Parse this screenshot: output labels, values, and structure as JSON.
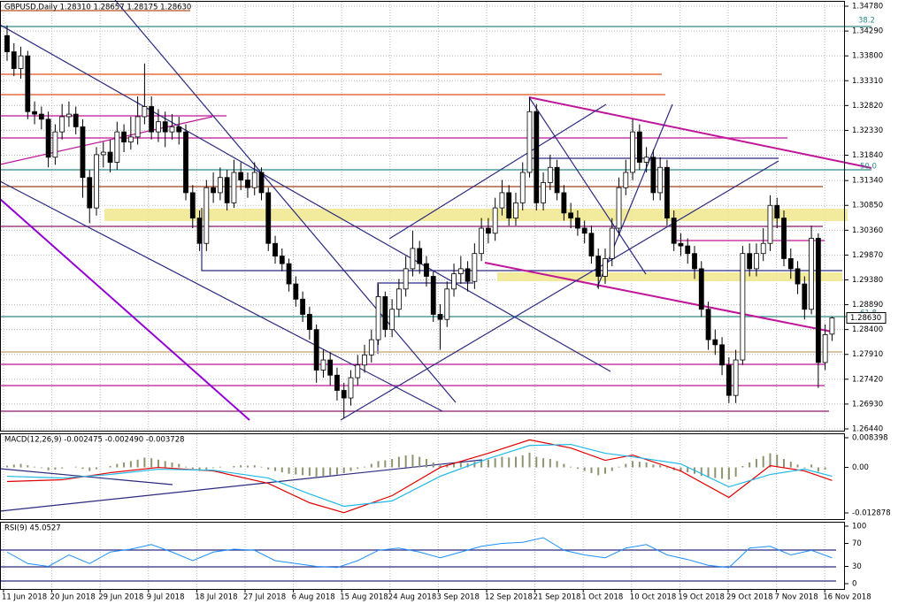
{
  "chart_data": [
    {
      "type": "candlestick",
      "title": "GBPUSD,Daily  1.28310 1.28657 1.28175 1.28630",
      "ylim": [
        1.2644,
        1.3478
      ],
      "yticks": [
        {
          "value": 1.3478,
          "label": "1.34780"
        },
        {
          "value": 1.3429,
          "label": "1.34290"
        },
        {
          "value": 1.338,
          "label": "1.33800"
        },
        {
          "value": 1.3331,
          "label": "1.33310"
        },
        {
          "value": 1.3282,
          "label": "1.32820"
        },
        {
          "value": 1.3233,
          "label": "1.32330"
        },
        {
          "value": 1.3184,
          "label": "1.31840"
        },
        {
          "value": 1.3134,
          "label": "1.31340"
        },
        {
          "value": 1.3085,
          "label": "1.30850"
        },
        {
          "value": 1.3036,
          "label": "1.30360"
        },
        {
          "value": 1.2987,
          "label": "1.29870"
        },
        {
          "value": 1.2938,
          "label": "1.29380"
        },
        {
          "value": 1.2889,
          "label": "1.28890"
        },
        {
          "value": 1.284,
          "label": "1.28400"
        },
        {
          "value": 1.2791,
          "label": "1.27910"
        },
        {
          "value": 1.2742,
          "label": "1.27420"
        },
        {
          "value": 1.2693,
          "label": "1.26930"
        },
        {
          "value": 1.2644,
          "label": "1.26440"
        }
      ],
      "grid": true,
      "up_color": "#ffffff",
      "down_color": "#000000",
      "annotations": [
        "38.2",
        "50.0",
        "61.8"
      ],
      "last_price": {
        "value": 1.2863,
        "label": "1.28630"
      },
      "open": [
        1.342,
        1.3388,
        1.3355,
        1.338,
        1.327,
        1.3265,
        1.3255,
        1.318,
        1.323,
        1.326,
        1.3265,
        1.324,
        1.314,
        1.308,
        1.3185,
        1.319,
        1.317,
        1.323,
        1.321,
        1.322,
        1.326,
        1.328,
        1.323,
        1.325,
        1.323,
        1.324,
        1.323,
        1.311,
        1.306,
        1.301,
        1.312,
        1.311,
        1.314,
        1.309,
        1.315,
        1.3135,
        1.312,
        1.315,
        1.311,
        1.301,
        1.2985,
        1.297,
        1.293,
        1.29,
        1.287,
        1.284,
        1.276,
        1.278,
        1.275,
        1.272,
        1.2705,
        1.2745,
        1.277,
        1.279,
        1.282,
        1.2905,
        1.284,
        1.288,
        1.292,
        1.296,
        1.3,
        1.297,
        1.2945,
        1.287,
        1.286,
        1.292,
        1.295,
        1.296,
        1.2935,
        1.299,
        1.304,
        1.303,
        1.308,
        1.311,
        1.306,
        1.309,
        1.315,
        1.327,
        1.309,
        1.313,
        1.316,
        1.311,
        1.307,
        1.306,
        1.304,
        1.303,
        1.2985,
        1.2945,
        1.298,
        1.304,
        1.312,
        1.315,
        1.323,
        1.317,
        1.318,
        1.311,
        1.316,
        1.306,
        1.301,
        1.3005,
        1.299,
        1.296,
        1.288,
        1.282,
        1.281,
        1.277,
        1.271,
        1.278,
        1.299,
        1.296,
        1.299,
        1.301,
        1.3085,
        1.306,
        1.298,
        1.296,
        1.293,
        1.288,
        1.302,
        1.2775,
        1.2831
      ],
      "high": [
        1.344,
        1.3405,
        1.3398,
        1.339,
        1.329,
        1.328,
        1.327,
        1.3245,
        1.3285,
        1.329,
        1.328,
        1.3255,
        1.3155,
        1.32,
        1.321,
        1.3215,
        1.325,
        1.3245,
        1.326,
        1.33,
        1.3365,
        1.33,
        1.3275,
        1.327,
        1.3265,
        1.326,
        1.3245,
        1.3125,
        1.3075,
        1.3135,
        1.315,
        1.316,
        1.3155,
        1.3175,
        1.317,
        1.315,
        1.317,
        1.316,
        1.312,
        1.3025,
        1.3,
        1.298,
        1.2945,
        1.2915,
        1.2885,
        1.285,
        1.28,
        1.2795,
        1.2765,
        1.2735,
        1.276,
        1.279,
        1.281,
        1.284,
        1.293,
        1.2915,
        1.29,
        1.294,
        1.2985,
        1.3035,
        1.3015,
        1.2985,
        1.2955,
        1.289,
        1.2935,
        1.297,
        1.2985,
        1.2975,
        1.301,
        1.306,
        1.306,
        1.31,
        1.3135,
        1.3125,
        1.311,
        1.317,
        1.3298,
        1.3285,
        1.315,
        1.3185,
        1.3175,
        1.3125,
        1.309,
        1.3075,
        1.3055,
        1.3045,
        1.3,
        1.3,
        1.306,
        1.314,
        1.3175,
        1.3255,
        1.3245,
        1.32,
        1.3195,
        1.318,
        1.3175,
        1.3075,
        1.303,
        1.302,
        1.3005,
        1.2975,
        1.2895,
        1.284,
        1.2825,
        1.2785,
        1.28,
        1.3005,
        1.301,
        1.301,
        1.304,
        1.3105,
        1.31,
        1.3075,
        1.3,
        1.2975,
        1.2945,
        1.3045,
        1.303,
        1.285,
        1.28657
      ],
      "low": [
        1.337,
        1.334,
        1.3335,
        1.3255,
        1.3245,
        1.3235,
        1.316,
        1.3165,
        1.3215,
        1.324,
        1.3225,
        1.31,
        1.305,
        1.3065,
        1.316,
        1.315,
        1.3155,
        1.319,
        1.3195,
        1.3205,
        1.3245,
        1.3215,
        1.321,
        1.32,
        1.3215,
        1.3205,
        1.3095,
        1.304,
        1.2995,
        1.2995,
        1.309,
        1.3095,
        1.3075,
        1.308,
        1.3115,
        1.31,
        1.3105,
        1.3095,
        1.2995,
        1.297,
        1.2955,
        1.2915,
        1.2885,
        1.2855,
        1.282,
        1.2735,
        1.2745,
        1.273,
        1.27,
        1.2665,
        1.269,
        1.273,
        1.2755,
        1.2775,
        1.281,
        1.2825,
        1.2825,
        1.2865,
        1.2905,
        1.2945,
        1.295,
        1.2925,
        1.2855,
        1.28,
        1.2845,
        1.2905,
        1.293,
        1.2915,
        1.292,
        1.2975,
        1.301,
        1.3015,
        1.3065,
        1.3045,
        1.3045,
        1.3075,
        1.314,
        1.3075,
        1.3075,
        1.3115,
        1.3095,
        1.3055,
        1.304,
        1.3025,
        1.301,
        1.297,
        1.292,
        1.293,
        1.2965,
        1.3025,
        1.3105,
        1.3135,
        1.3155,
        1.315,
        1.3095,
        1.3095,
        1.3045,
        1.2995,
        1.2985,
        1.297,
        1.294,
        1.2865,
        1.28,
        1.279,
        1.275,
        1.2695,
        1.2695,
        1.277,
        1.2945,
        1.2945,
        1.2975,
        1.2995,
        1.304,
        1.2965,
        1.294,
        1.291,
        1.286,
        1.287,
        1.2725,
        1.276,
        1.28175
      ],
      "close": [
        1.3388,
        1.3355,
        1.338,
        1.327,
        1.3265,
        1.3255,
        1.318,
        1.323,
        1.326,
        1.3265,
        1.324,
        1.314,
        1.308,
        1.3185,
        1.319,
        1.317,
        1.323,
        1.321,
        1.322,
        1.326,
        1.328,
        1.323,
        1.325,
        1.323,
        1.324,
        1.323,
        1.311,
        1.306,
        1.301,
        1.312,
        1.311,
        1.314,
        1.309,
        1.315,
        1.3135,
        1.312,
        1.315,
        1.311,
        1.301,
        1.2985,
        1.297,
        1.293,
        1.29,
        1.287,
        1.284,
        1.276,
        1.278,
        1.275,
        1.272,
        1.2705,
        1.2745,
        1.277,
        1.279,
        1.282,
        1.2905,
        1.284,
        1.288,
        1.292,
        1.296,
        1.3,
        1.297,
        1.2945,
        1.287,
        1.286,
        1.292,
        1.295,
        1.296,
        1.2935,
        1.299,
        1.304,
        1.303,
        1.308,
        1.311,
        1.306,
        1.309,
        1.315,
        1.327,
        1.309,
        1.313,
        1.316,
        1.311,
        1.307,
        1.306,
        1.304,
        1.303,
        1.2985,
        1.2945,
        1.298,
        1.304,
        1.312,
        1.315,
        1.323,
        1.317,
        1.318,
        1.311,
        1.316,
        1.306,
        1.301,
        1.3005,
        1.299,
        1.296,
        1.288,
        1.282,
        1.281,
        1.277,
        1.271,
        1.278,
        1.299,
        1.296,
        1.299,
        1.301,
        1.3085,
        1.306,
        1.298,
        1.296,
        1.293,
        1.288,
        1.302,
        1.2775,
        1.283,
        1.2863
      ]
    },
    {
      "type": "macd",
      "title": "MACD(12,26,9) -0.002475 -0.002490 -0.003728",
      "ylim": [
        -0.012878,
        0.008398
      ],
      "yticks": [
        0.008398,
        {
          "value": 0,
          "label": "0.00"
        },
        -0.012878
      ],
      "histogram_color": "#8c9470",
      "histogram": [
        0.0005,
        0.0008,
        0.001,
        0.0006,
        0.0002,
        -0.0002,
        -0.0008,
        -0.0006,
        -0.0003,
        0.0,
        0.0002,
        -0.0004,
        -0.001,
        -0.0005,
        0.0,
        0.0004,
        0.001,
        0.0014,
        0.0018,
        0.0022,
        0.0028,
        0.0026,
        0.0022,
        0.0018,
        0.0014,
        0.001,
        0.0002,
        -0.0004,
        -0.001,
        -0.0006,
        -0.0002,
        0.0002,
        0.0,
        0.0004,
        0.0006,
        0.0005,
        0.0006,
        0.0002,
        -0.0006,
        -0.001,
        -0.0014,
        -0.0018,
        -0.002,
        -0.0022,
        -0.0024,
        -0.0028,
        -0.0024,
        -0.0022,
        -0.002,
        -0.0016,
        -0.001,
        -0.0004,
        0.0002,
        0.001,
        0.0018,
        0.002,
        0.0024,
        0.003,
        0.0034,
        0.0036,
        0.003,
        0.0024,
        0.0014,
        0.0006,
        0.0008,
        0.0012,
        0.0014,
        0.0012,
        0.0016,
        0.002,
        0.0022,
        0.0026,
        0.003,
        0.0028,
        0.003,
        0.0034,
        0.0042,
        0.003,
        0.0026,
        0.0024,
        0.0018,
        0.001,
        0.0002,
        -0.0004,
        -0.001,
        -0.0016,
        -0.0022,
        -0.0018,
        -0.001,
        0.0002,
        0.001,
        0.0018,
        0.0016,
        0.0014,
        0.0008,
        0.0006,
        -0.0002,
        -0.0008,
        -0.0012,
        -0.0014,
        -0.0018,
        -0.0024,
        -0.0028,
        -0.003,
        -0.0032,
        -0.0034,
        -0.0026,
        0.0004,
        0.0014,
        0.0024,
        0.0032,
        0.004,
        0.0036,
        0.0024,
        0.0016,
        0.0008,
        -0.0002,
        0.0008,
        -0.0012,
        -0.0006,
        0.0
      ],
      "lines": [
        {
          "color": "#e00000",
          "x": [
            0,
            8,
            15,
            22,
            30,
            38,
            44,
            49,
            56,
            63,
            70,
            76,
            82,
            87,
            91,
            98,
            105,
            111,
            116,
            120
          ],
          "values": [
            -0.004,
            -0.0035,
            -0.0015,
            0.0,
            -0.001,
            -0.0045,
            -0.01,
            -0.0128,
            -0.008,
            0.0,
            0.004,
            0.0078,
            0.0055,
            0.002,
            0.0035,
            -0.001,
            -0.0085,
            0.0005,
            -0.001,
            -0.0037
          ]
        },
        {
          "color": "#22b8e8",
          "x": [
            0,
            8,
            15,
            22,
            30,
            38,
            44,
            49,
            56,
            63,
            70,
            76,
            82,
            87,
            91,
            98,
            105,
            111,
            116,
            120
          ],
          "values": [
            -0.0025,
            -0.003,
            -0.002,
            -0.0005,
            -0.0008,
            -0.003,
            -0.0075,
            -0.011,
            -0.0095,
            -0.0025,
            0.0025,
            0.0062,
            0.0065,
            0.004,
            0.003,
            0.001,
            -0.0055,
            -0.002,
            -0.0005,
            -0.0025
          ]
        }
      ]
    },
    {
      "type": "line",
      "title": "RSI(9) 45.0527",
      "ylim": [
        0,
        100
      ],
      "yticks": [
        100,
        70,
        30,
        0
      ],
      "color": "#1e90ff",
      "x": [
        0,
        3,
        6,
        9,
        12,
        15,
        18,
        21,
        24,
        27,
        30,
        33,
        36,
        39,
        42,
        45,
        48,
        51,
        54,
        57,
        60,
        63,
        66,
        69,
        72,
        75,
        78,
        81,
        84,
        87,
        90,
        93,
        96,
        99,
        102,
        105,
        108,
        111,
        114,
        117,
        120
      ],
      "values": [
        55,
        35,
        30,
        50,
        35,
        55,
        60,
        68,
        55,
        40,
        55,
        60,
        58,
        40,
        35,
        30,
        28,
        40,
        58,
        62,
        55,
        45,
        55,
        65,
        70,
        72,
        80,
        58,
        50,
        45,
        62,
        68,
        50,
        42,
        32,
        28,
        62,
        65,
        50,
        58,
        45
      ],
      "x_labels": [
        "11 Jun 2018",
        "20 Jun 2018",
        "29 Jun 2018",
        "9 Jul 2018",
        "18 Jul 2018",
        "27 Jul 2018",
        "6 Aug 2018",
        "15 Aug 2018",
        "24 Aug 2018",
        "3 Sep 2018",
        "12 Sep 2018",
        "21 Sep 2018",
        "1 Oct 2018",
        "10 Oct 2018",
        "19 Oct 2018",
        "29 Oct 2018",
        "7 Nov 2018",
        "16 Nov 2018"
      ]
    }
  ]
}
